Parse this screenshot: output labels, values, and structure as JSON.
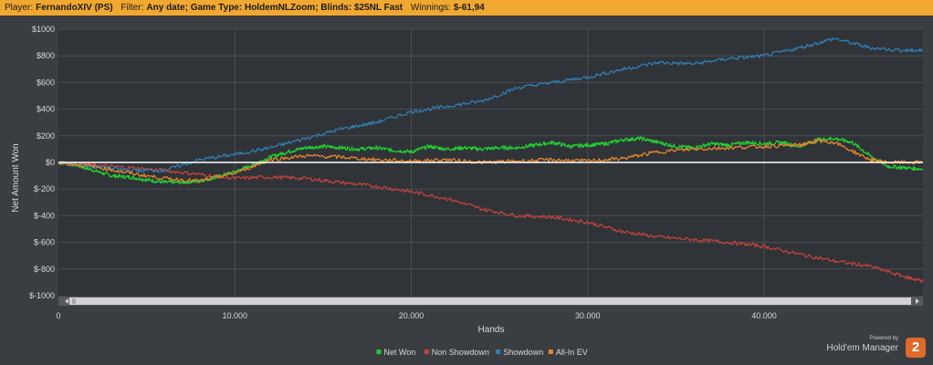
{
  "header": {
    "player_label": "Player:",
    "player_value": "FernandoXIV (PS)",
    "filter_label": "Filter:",
    "filter_value": "Any date; Game Type: HoldemNLZoom; Blinds: $25NL Fast",
    "winnings_label": "Winnings:",
    "winnings_value": "$-61,94"
  },
  "branding": {
    "powered_by": "Powered by",
    "name": "Hold'em Manager",
    "logo_text": "2"
  },
  "chart_data": {
    "type": "line",
    "title": "",
    "xlabel": "Hands",
    "ylabel": "Net Amount Won",
    "xlim": [
      0,
      49000
    ],
    "ylim": [
      -1000,
      1000
    ],
    "x_ticks": [
      0,
      10000,
      20000,
      30000,
      40000
    ],
    "x_tick_labels": [
      "0",
      "10.000",
      "20.000",
      "30.000",
      "40.000"
    ],
    "y_ticks": [
      1000,
      800,
      600,
      400,
      200,
      0,
      -200,
      -400,
      -600,
      -800,
      -1000
    ],
    "y_tick_labels": [
      "$1000",
      "$800",
      "$600",
      "$400",
      "$200",
      "$0",
      "$-200",
      "$-400",
      "$-600",
      "$-800",
      "$-1000"
    ],
    "grid": true,
    "legend_position": "bottom-center",
    "series": [
      {
        "name": "Net Won",
        "color": "#22cc33",
        "points": [
          [
            0,
            0
          ],
          [
            1000,
            -20
          ],
          [
            2000,
            -60
          ],
          [
            3000,
            -100
          ],
          [
            4000,
            -110
          ],
          [
            5000,
            -130
          ],
          [
            6000,
            -150
          ],
          [
            7000,
            -150
          ],
          [
            8000,
            -140
          ],
          [
            9000,
            -110
          ],
          [
            10000,
            -70
          ],
          [
            11000,
            -20
          ],
          [
            12000,
            40
          ],
          [
            13000,
            80
          ],
          [
            14000,
            110
          ],
          [
            15000,
            120
          ],
          [
            16000,
            110
          ],
          [
            17000,
            100
          ],
          [
            18000,
            110
          ],
          [
            19000,
            90
          ],
          [
            20000,
            80
          ],
          [
            21000,
            120
          ],
          [
            22000,
            100
          ],
          [
            23000,
            110
          ],
          [
            24000,
            100
          ],
          [
            25000,
            110
          ],
          [
            26000,
            110
          ],
          [
            27000,
            130
          ],
          [
            28000,
            150
          ],
          [
            29000,
            120
          ],
          [
            30000,
            130
          ],
          [
            31000,
            140
          ],
          [
            32000,
            170
          ],
          [
            33000,
            180
          ],
          [
            34000,
            150
          ],
          [
            35000,
            120
          ],
          [
            36000,
            110
          ],
          [
            37000,
            140
          ],
          [
            38000,
            130
          ],
          [
            39000,
            150
          ],
          [
            40000,
            140
          ],
          [
            41000,
            150
          ],
          [
            42000,
            120
          ],
          [
            43000,
            170
          ],
          [
            44000,
            180
          ],
          [
            45000,
            150
          ],
          [
            46000,
            50
          ],
          [
            47000,
            -30
          ],
          [
            48000,
            -40
          ],
          [
            49000,
            -50
          ]
        ]
      },
      {
        "name": "Non Showdown",
        "color": "#c0443a",
        "points": [
          [
            0,
            0
          ],
          [
            2000,
            -20
          ],
          [
            4000,
            -40
          ],
          [
            6000,
            -60
          ],
          [
            8000,
            -90
          ],
          [
            10000,
            -120
          ],
          [
            12000,
            -110
          ],
          [
            14000,
            -120
          ],
          [
            16000,
            -150
          ],
          [
            18000,
            -180
          ],
          [
            20000,
            -220
          ],
          [
            22000,
            -270
          ],
          [
            24000,
            -350
          ],
          [
            26000,
            -400
          ],
          [
            28000,
            -410
          ],
          [
            30000,
            -450
          ],
          [
            32000,
            -520
          ],
          [
            34000,
            -560
          ],
          [
            36000,
            -580
          ],
          [
            38000,
            -600
          ],
          [
            40000,
            -630
          ],
          [
            42000,
            -690
          ],
          [
            44000,
            -740
          ],
          [
            46000,
            -780
          ],
          [
            48000,
            -860
          ],
          [
            49000,
            -890
          ]
        ]
      },
      {
        "name": "Showdown",
        "color": "#2f7fb5",
        "points": [
          [
            0,
            0
          ],
          [
            2000,
            -30
          ],
          [
            4000,
            -60
          ],
          [
            6000,
            -60
          ],
          [
            8000,
            20
          ],
          [
            10000,
            60
          ],
          [
            12000,
            110
          ],
          [
            14000,
            180
          ],
          [
            16000,
            250
          ],
          [
            18000,
            300
          ],
          [
            20000,
            380
          ],
          [
            22000,
            420
          ],
          [
            24000,
            460
          ],
          [
            26000,
            560
          ],
          [
            28000,
            600
          ],
          [
            30000,
            640
          ],
          [
            32000,
            700
          ],
          [
            34000,
            750
          ],
          [
            36000,
            740
          ],
          [
            38000,
            780
          ],
          [
            40000,
            800
          ],
          [
            42000,
            860
          ],
          [
            44000,
            930
          ],
          [
            46000,
            860
          ],
          [
            48000,
            840
          ],
          [
            49000,
            840
          ]
        ]
      },
      {
        "name": "All-In EV",
        "color": "#e6862e",
        "points": [
          [
            0,
            0
          ],
          [
            2000,
            -30
          ],
          [
            4000,
            -80
          ],
          [
            6000,
            -120
          ],
          [
            8000,
            -140
          ],
          [
            10000,
            -80
          ],
          [
            12000,
            20
          ],
          [
            14000,
            50
          ],
          [
            16000,
            40
          ],
          [
            18000,
            20
          ],
          [
            20000,
            10
          ],
          [
            22000,
            20
          ],
          [
            24000,
            0
          ],
          [
            26000,
            10
          ],
          [
            28000,
            20
          ],
          [
            30000,
            10
          ],
          [
            32000,
            30
          ],
          [
            34000,
            80
          ],
          [
            36000,
            100
          ],
          [
            38000,
            110
          ],
          [
            40000,
            120
          ],
          [
            42000,
            130
          ],
          [
            43000,
            160
          ],
          [
            44000,
            150
          ],
          [
            46000,
            20
          ],
          [
            47000,
            0
          ],
          [
            49000,
            0
          ]
        ]
      }
    ]
  }
}
